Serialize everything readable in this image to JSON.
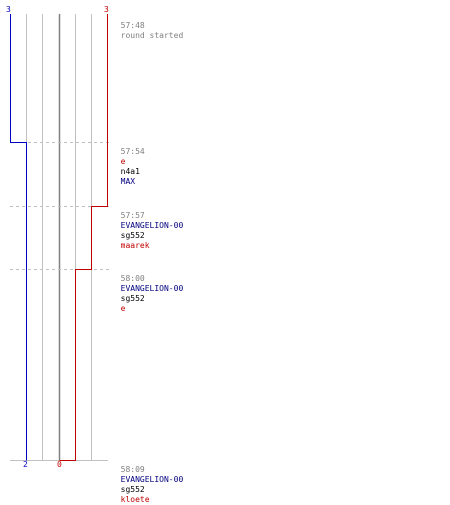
{
  "score_top": {
    "blue": "3",
    "red": "3"
  },
  "score_bottom": {
    "blue": "2",
    "red": "0"
  },
  "colors": {
    "blue_team": "#0000c0",
    "red_team": "#c00000",
    "grid": "#c0c0c0",
    "center": "#808080"
  },
  "events": [
    {
      "time": "57:48",
      "parts": [
        {
          "text": "round started",
          "color": "grey"
        }
      ]
    },
    {
      "time": "57:54",
      "parts": [
        {
          "text": "e",
          "color": "red"
        },
        {
          "text": "n4a1",
          "color": "black"
        },
        {
          "text": "MAX",
          "color": "blue"
        }
      ]
    },
    {
      "time": "57:57",
      "parts": [
        {
          "text": "EVANGELION-00",
          "color": "blue"
        },
        {
          "text": "sg552",
          "color": "black"
        },
        {
          "text": "maarek",
          "color": "red"
        }
      ]
    },
    {
      "time": "58:00",
      "parts": [
        {
          "text": "EVANGELION-00",
          "color": "blue"
        },
        {
          "text": "sg552",
          "color": "black"
        },
        {
          "text": "e",
          "color": "red"
        }
      ]
    },
    {
      "time": "58:09",
      "parts": [
        {
          "text": "EVANGELION-00",
          "color": "blue"
        },
        {
          "text": "sg552",
          "color": "black"
        },
        {
          "text": "kloete",
          "color": "red"
        }
      ]
    }
  ]
}
